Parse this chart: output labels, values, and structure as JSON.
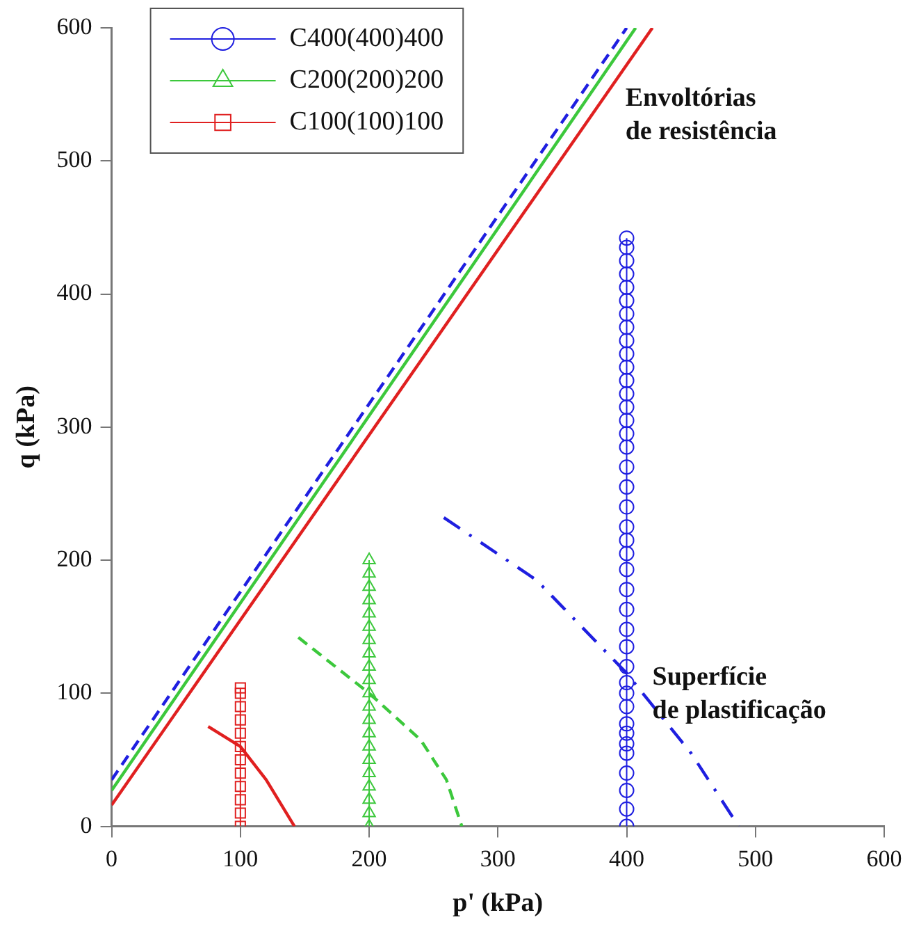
{
  "chart_data": {
    "type": "line",
    "xlabel": "p' (kPa)",
    "ylabel": "q (kPa)",
    "xlim": [
      0,
      600
    ],
    "xticks": [
      0,
      100,
      200,
      300,
      400,
      500,
      600
    ],
    "ylim": [
      0,
      600
    ],
    "yticks": [
      0,
      100,
      200,
      300,
      400,
      500,
      600
    ],
    "grid": false,
    "legend": "top left",
    "series": [
      {
        "name": "C400(400)400",
        "color": "#1f1fe0",
        "marker": "circle",
        "line_style": "solid",
        "x": [
          400,
          400,
          400,
          400,
          400,
          400,
          400,
          400,
          400,
          400,
          400,
          400,
          400,
          400,
          400,
          400,
          400,
          400,
          400,
          400,
          400,
          400,
          400,
          400,
          400,
          400,
          400,
          400,
          400,
          400,
          400,
          400,
          400,
          400,
          400,
          400,
          400,
          400,
          400,
          400
        ],
        "values": [
          0,
          13,
          27,
          40,
          55,
          62,
          70,
          77,
          90,
          100,
          108,
          120,
          135,
          148,
          163,
          178,
          193,
          205,
          215,
          225,
          240,
          255,
          270,
          285,
          295,
          305,
          315,
          325,
          335,
          345,
          355,
          365,
          375,
          385,
          395,
          405,
          415,
          425,
          435,
          442
        ]
      },
      {
        "name": "C200(200)200",
        "color": "#3cc83c",
        "marker": "triangle",
        "line_style": "solid",
        "x": [
          200,
          200,
          200,
          200,
          200,
          200,
          200,
          200,
          200,
          200,
          200,
          200,
          200,
          200,
          200,
          200,
          200,
          200,
          200,
          200,
          200
        ],
        "values": [
          0,
          10,
          20,
          30,
          40,
          50,
          60,
          70,
          80,
          90,
          100,
          110,
          120,
          130,
          140,
          150,
          160,
          170,
          180,
          190,
          200
        ]
      },
      {
        "name": "C100(100)100",
        "color": "#e02020",
        "marker": "square",
        "line_style": "solid",
        "x": [
          100,
          100,
          100,
          100,
          100,
          100,
          100,
          100,
          100,
          100,
          100,
          100
        ],
        "values": [
          0,
          10,
          20,
          30,
          40,
          50,
          60,
          70,
          80,
          90,
          100,
          104
        ]
      },
      {
        "color": "#1f1fe0",
        "marker": "none",
        "line_style": "dashed",
        "x": [
          0,
          400
        ],
        "values": [
          35,
          600
        ]
      },
      {
        "color": "#3cc83c",
        "marker": "none",
        "line_style": "solid",
        "x": [
          0,
          407
        ],
        "values": [
          27,
          600
        ]
      },
      {
        "color": "#e02020",
        "marker": "none",
        "line_style": "solid",
        "x": [
          0,
          420
        ],
        "values": [
          16,
          600
        ]
      },
      {
        "color": "#e02020",
        "marker": "none",
        "line_style": "solid",
        "x": [
          75,
          100,
          120,
          142
        ],
        "values": [
          75,
          60,
          35,
          0
        ]
      },
      {
        "color": "#3cc83c",
        "marker": "none",
        "line_style": "dashed",
        "x": [
          145,
          200,
          240,
          260,
          272
        ],
        "values": [
          142,
          100,
          65,
          35,
          0
        ]
      },
      {
        "color": "#1f1fe0",
        "marker": "none",
        "line_style": "dashdot",
        "x": [
          258,
          330,
          400,
          450,
          487
        ],
        "values": [
          232,
          185,
          115,
          55,
          0
        ]
      }
    ],
    "annotations": [
      "Envoltórias\nde resistência",
      "Superfície\nde plastificação"
    ]
  }
}
